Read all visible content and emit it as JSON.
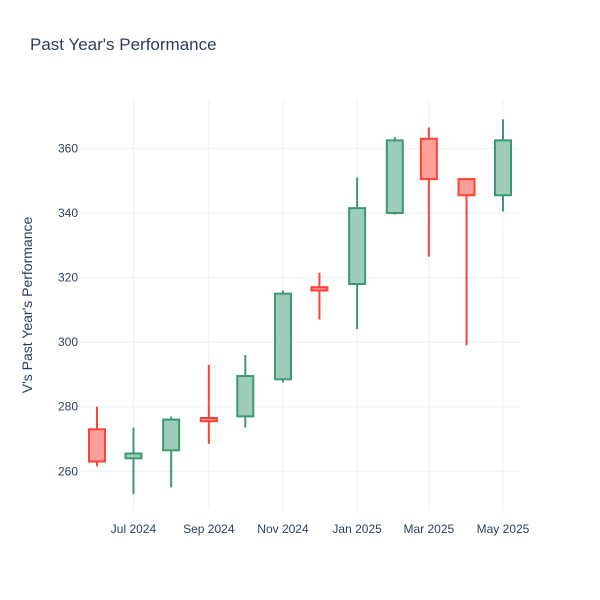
{
  "chart_data": {
    "type": "candlestick",
    "title": "Past Year's Performance",
    "xlabel": "",
    "ylabel": "V's Past Year's Performance",
    "x_tick_labels": [
      "Jul 2024",
      "Sep 2024",
      "Nov 2024",
      "Jan 2025",
      "Mar 2025",
      "May 2025"
    ],
    "y_ticks": [
      260,
      280,
      300,
      320,
      340,
      360
    ],
    "ylim": [
      248,
      375
    ],
    "grid": true,
    "legend": "none",
    "colors": {
      "increasing": "#3d9970",
      "increasing_fill": "#9ecdb7",
      "decreasing": "#ff4136",
      "decreasing_fill": "#ff9f9a"
    },
    "candles": [
      {
        "date": "2024-06-01",
        "open": 273,
        "high": 280,
        "low": 261.5,
        "close": 263
      },
      {
        "date": "2024-07-01",
        "open": 264,
        "high": 273.5,
        "low": 253,
        "close": 265.5
      },
      {
        "date": "2024-08-01",
        "open": 266.5,
        "high": 277,
        "low": 255,
        "close": 276
      },
      {
        "date": "2024-09-01",
        "open": 276.5,
        "high": 293,
        "low": 268.5,
        "close": 275.5
      },
      {
        "date": "2024-10-01",
        "open": 277,
        "high": 296,
        "low": 273.5,
        "close": 289.5
      },
      {
        "date": "2024-11-01",
        "open": 288.5,
        "high": 316,
        "low": 287.5,
        "close": 315
      },
      {
        "date": "2024-12-01",
        "open": 317,
        "high": 321.5,
        "low": 307,
        "close": 316
      },
      {
        "date": "2025-01-01",
        "open": 318,
        "high": 351,
        "low": 304,
        "close": 341.5
      },
      {
        "date": "2025-02-01",
        "open": 340,
        "high": 363.5,
        "low": 339.5,
        "close": 362.5
      },
      {
        "date": "2025-03-01",
        "open": 363,
        "high": 366.5,
        "low": 326.5,
        "close": 350.5
      },
      {
        "date": "2025-04-01",
        "open": 350.5,
        "high": 350.5,
        "low": 299,
        "close": 345.5
      },
      {
        "date": "2025-05-01",
        "open": 345.5,
        "high": 369,
        "low": 340.5,
        "close": 362.5
      }
    ]
  }
}
